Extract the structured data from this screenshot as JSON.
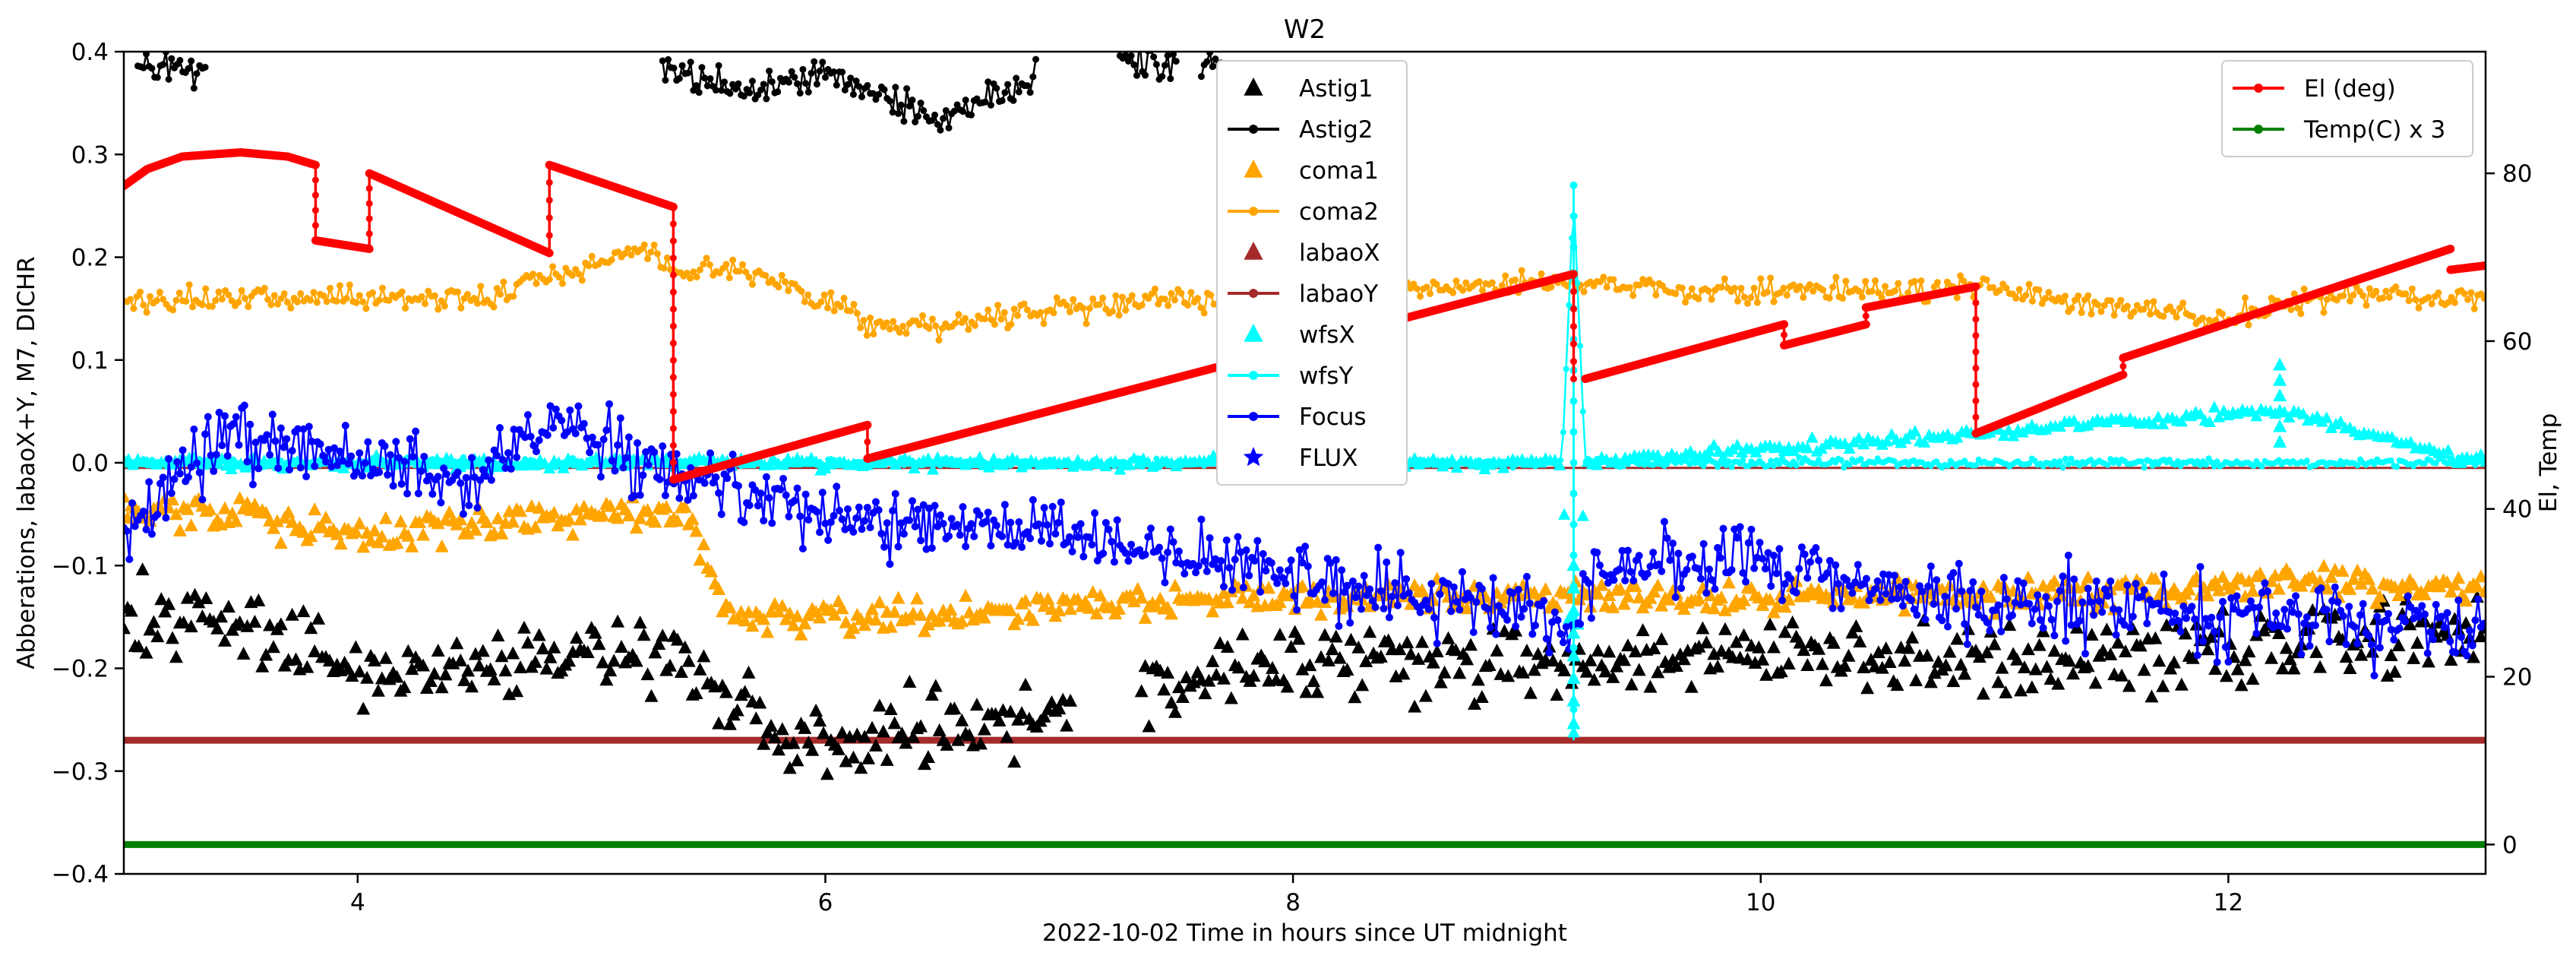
{
  "chart_data": {
    "type": "scatter",
    "title": "W2",
    "xlabel": "2022-10-02  Time in hours since UT midnight",
    "ylabel": "Abberations, labaoX+Y, M7, DICHR",
    "y2label": "El, Temp",
    "xlim": [
      3.0,
      13.1
    ],
    "ylim": [
      -0.4,
      0.4
    ],
    "y2lim": [
      -3.5,
      94.5
    ],
    "x_ticks": [
      4,
      6,
      8,
      10,
      12
    ],
    "y_ticks": [
      -0.4,
      -0.3,
      -0.2,
      -0.1,
      0.0,
      0.1,
      0.2,
      0.3,
      0.4
    ],
    "y_tick_labels": [
      "−0.4",
      "−0.3",
      "−0.2",
      "−0.1",
      "0.0",
      "0.1",
      "0.2",
      "0.3",
      "0.4"
    ],
    "y2_ticks": [
      0,
      20,
      40,
      60,
      80
    ],
    "legend_left": {
      "placement": "upper-center",
      "entries": [
        {
          "name": "Astig1",
          "marker": "triangle",
          "line": false,
          "color": "#000000"
        },
        {
          "name": "Astig2",
          "marker": "dot",
          "line": true,
          "color": "#000000"
        },
        {
          "name": "coma1",
          "marker": "triangle",
          "line": false,
          "color": "#ffa500"
        },
        {
          "name": "coma2",
          "marker": "dot",
          "line": true,
          "color": "#ffa500"
        },
        {
          "name": "labaoX",
          "marker": "triangle",
          "line": false,
          "color": "#a52a2a"
        },
        {
          "name": "labaoY",
          "marker": "dot",
          "line": true,
          "color": "#a52a2a"
        },
        {
          "name": "wfsX",
          "marker": "triangle",
          "line": false,
          "color": "#00ffff"
        },
        {
          "name": "wfsY",
          "marker": "dot",
          "line": true,
          "color": "#00ffff"
        },
        {
          "name": "Focus",
          "marker": "dot",
          "line": true,
          "color": "#0000ff"
        },
        {
          "name": "FLUX",
          "marker": "star",
          "line": false,
          "color": "#0000ff"
        }
      ]
    },
    "legend_right": {
      "placement": "upper-right",
      "entries": [
        {
          "name": "El (deg)",
          "marker": "dot",
          "line": true,
          "color": "#ff0000"
        },
        {
          "name": "Temp(C) x 3",
          "marker": "dot",
          "line": true,
          "color": "#008000"
        }
      ]
    },
    "series": [
      {
        "name": "El (deg)",
        "axis": "right",
        "color": "#ff0000",
        "segments": [
          {
            "x": [
              3.0,
              3.1,
              3.25,
              3.5,
              3.7,
              3.82
            ],
            "y": [
              78.5,
              80.5,
              82.0,
              82.5,
              82.0,
              81.0
            ]
          },
          {
            "x": [
              3.82,
              4.05
            ],
            "y": [
              72.0,
              71.0
            ]
          },
          {
            "x": [
              4.05,
              4.82
            ],
            "y": [
              80.0,
              70.5
            ]
          },
          {
            "x": [
              4.82,
              5.35
            ],
            "y": [
              81.0,
              76.0
            ]
          },
          {
            "x": [
              5.35,
              6.18
            ],
            "y": [
              43.5,
              50.0
            ]
          },
          {
            "x": [
              6.18,
              9.2
            ],
            "y": [
              46.0,
              68.0
            ]
          },
          {
            "x": [
              9.25,
              10.1
            ],
            "y": [
              55.5,
              62.0
            ]
          },
          {
            "x": [
              10.1,
              10.45
            ],
            "y": [
              59.5,
              62.0
            ]
          },
          {
            "x": [
              10.45,
              10.92
            ],
            "y": [
              64.0,
              66.5
            ]
          },
          {
            "x": [
              10.92,
              11.55
            ],
            "y": [
              49.0,
              56.0
            ]
          },
          {
            "x": [
              11.55,
              12.95
            ],
            "y": [
              58.0,
              71.0
            ]
          },
          {
            "x": [
              12.95,
              13.1
            ],
            "y": [
              68.5,
              69.0
            ]
          }
        ],
        "drops": [
          {
            "x": 3.82,
            "from": 81.0,
            "to": 72.0
          },
          {
            "x": 4.05,
            "from": 71.0,
            "to": 80.0
          },
          {
            "x": 4.82,
            "from": 70.5,
            "to": 81.0
          },
          {
            "x": 5.35,
            "from": 76.0,
            "to": 43.5
          },
          {
            "x": 6.18,
            "from": 50.0,
            "to": 46.0
          },
          {
            "x": 9.2,
            "from": 68.0,
            "to": 55.5
          },
          {
            "x": 10.1,
            "from": 62.0,
            "to": 59.5
          },
          {
            "x": 10.45,
            "from": 62.0,
            "to": 64.0
          },
          {
            "x": 10.92,
            "from": 66.5,
            "to": 49.0
          },
          {
            "x": 11.55,
            "from": 56.0,
            "to": 58.0
          }
        ]
      },
      {
        "name": "Temp(C) x 3",
        "axis": "right",
        "color": "#008000",
        "x": [
          3.0,
          13.1
        ],
        "y": [
          0.0,
          0.0
        ]
      },
      {
        "name": "labaoX",
        "axis": "left",
        "color": "#a52a2a",
        "x": [
          3.0,
          13.1
        ],
        "y": [
          -0.27,
          -0.27
        ]
      },
      {
        "name": "labaoY",
        "axis": "left",
        "color": "#a52a2a",
        "x": [
          3.0,
          13.1
        ],
        "y": [
          -0.005,
          -0.005
        ]
      },
      {
        "name": "coma2",
        "axis": "left",
        "color": "#ffa500",
        "approx": [
          [
            3.0,
            0.155
          ],
          [
            3.5,
            0.16
          ],
          [
            4.0,
            0.16
          ],
          [
            4.5,
            0.16
          ],
          [
            5.0,
            0.19
          ],
          [
            5.2,
            0.21
          ],
          [
            5.3,
            0.19
          ],
          [
            5.7,
            0.185
          ],
          [
            6.0,
            0.155
          ],
          [
            6.3,
            0.13
          ],
          [
            7.0,
            0.15
          ],
          [
            8.0,
            0.165
          ],
          [
            9.0,
            0.175
          ],
          [
            10.0,
            0.165
          ],
          [
            11.0,
            0.17
          ],
          [
            11.5,
            0.15
          ],
          [
            12.0,
            0.14
          ],
          [
            12.5,
            0.165
          ],
          [
            13.1,
            0.16
          ]
        ]
      },
      {
        "name": "coma1",
        "axis": "left",
        "color": "#ffa500",
        "approx": [
          [
            3.0,
            -0.05
          ],
          [
            3.5,
            -0.05
          ],
          [
            4.0,
            -0.07
          ],
          [
            4.5,
            -0.06
          ],
          [
            5.0,
            -0.05
          ],
          [
            5.4,
            -0.05
          ],
          [
            5.6,
            -0.15
          ],
          [
            6.0,
            -0.15
          ],
          [
            6.5,
            -0.15
          ],
          [
            7.0,
            -0.14
          ],
          [
            8.0,
            -0.13
          ],
          [
            9.0,
            -0.13
          ],
          [
            10.0,
            -0.13
          ],
          [
            11.0,
            -0.13
          ],
          [
            12.0,
            -0.12
          ],
          [
            13.1,
            -0.12
          ]
        ]
      },
      {
        "name": "Astig1",
        "axis": "left",
        "color": "#000000",
        "approx": [
          [
            3.0,
            -0.15
          ],
          [
            3.5,
            -0.15
          ],
          [
            4.0,
            -0.2
          ],
          [
            4.5,
            -0.2
          ],
          [
            5.0,
            -0.18
          ],
          [
            5.4,
            -0.2
          ],
          [
            5.8,
            -0.27
          ],
          [
            6.5,
            -0.26
          ],
          [
            7.0,
            -0.24
          ],
          [
            8.0,
            -0.2
          ],
          [
            9.0,
            -0.2
          ],
          [
            9.3,
            -0.2
          ],
          [
            10.0,
            -0.19
          ],
          [
            11.0,
            -0.19
          ],
          [
            12.0,
            -0.18
          ],
          [
            13.1,
            -0.17
          ]
        ]
      },
      {
        "name": "Astig2",
        "axis": "left",
        "color": "#000000",
        "approx": [
          [
            3.05,
            0.385
          ],
          [
            3.3,
            0.385
          ],
          [
            5.3,
            0.38
          ],
          [
            5.7,
            0.36
          ],
          [
            6.0,
            0.38
          ],
          [
            6.5,
            0.33
          ],
          [
            7.0,
            0.39
          ],
          [
            7.7,
            0.39
          ]
        ]
      },
      {
        "name": "Focus",
        "axis": "left",
        "color": "#0000ff",
        "approx": [
          [
            3.0,
            -0.07
          ],
          [
            3.3,
            0.0
          ],
          [
            3.5,
            0.03
          ],
          [
            4.0,
            0.0
          ],
          [
            4.5,
            -0.02
          ],
          [
            4.8,
            0.04
          ],
          [
            5.2,
            0.0
          ],
          [
            5.6,
            -0.02
          ],
          [
            6.0,
            -0.05
          ],
          [
            6.5,
            -0.06
          ],
          [
            7.0,
            -0.07
          ],
          [
            7.5,
            -0.09
          ],
          [
            8.0,
            -0.11
          ],
          [
            8.5,
            -0.13
          ],
          [
            9.2,
            -0.15
          ],
          [
            9.3,
            -0.1
          ],
          [
            10.0,
            -0.1
          ],
          [
            10.5,
            -0.12
          ],
          [
            11.0,
            -0.14
          ],
          [
            11.5,
            -0.14
          ],
          [
            12.0,
            -0.15
          ],
          [
            13.1,
            -0.16
          ]
        ]
      },
      {
        "name": "wfsY",
        "axis": "left",
        "color": "#00ffff",
        "approx": [
          [
            3.0,
            0.0
          ],
          [
            9.15,
            0.0
          ],
          [
            9.2,
            0.26
          ],
          [
            9.25,
            0.0
          ],
          [
            13.1,
            0.0
          ]
        ]
      },
      {
        "name": "wfsX",
        "axis": "left",
        "color": "#00ffff",
        "approx": [
          [
            3.0,
            0.0
          ],
          [
            9.15,
            0.0
          ],
          [
            9.2,
            -0.26
          ],
          [
            9.25,
            0.0
          ],
          [
            12.2,
            0.05
          ],
          [
            13.1,
            0.0
          ]
        ]
      }
    ]
  }
}
